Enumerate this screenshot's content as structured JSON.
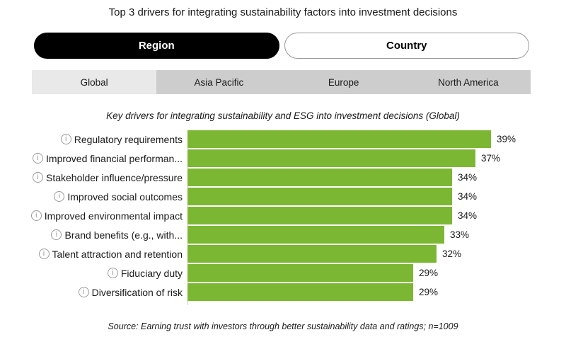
{
  "title": "Top 3 drivers for integrating sustainability factors into investment decisions",
  "toggle": {
    "region": "Region",
    "country": "Country"
  },
  "tabs": [
    {
      "label": "Global",
      "active": true
    },
    {
      "label": "Asia Pacific",
      "active": false
    },
    {
      "label": "Europe",
      "active": false
    },
    {
      "label": "North America",
      "active": false
    }
  ],
  "chart_data": {
    "type": "bar",
    "orientation": "horizontal",
    "title": "Key drivers for integrating sustainability and ESG into investment decisions (Global)",
    "categories": [
      "Regulatory requirements",
      "Improved financial performan...",
      "Stakeholder influence/pressure",
      "Improved social outcomes",
      "Improved environmental impact",
      "Brand benefits (e.g., with...",
      "Talent attraction and retention",
      "Fiduciary duty",
      "Diversification of risk"
    ],
    "values": [
      39,
      37,
      34,
      34,
      34,
      33,
      32,
      29,
      29
    ],
    "value_suffix": "%",
    "xlim": [
      0,
      39
    ],
    "grid": false,
    "legend": "none",
    "bar_color": "#7cb733",
    "info_icon": "circled-i"
  },
  "source": "Source: Earning trust with investors through better sustainability data and ratings; n=1009",
  "colors": {
    "bar_green": "#7cb733",
    "tab_active_bg": "#e9e9e9",
    "tab_inactive_bg": "#cdcdcd",
    "pill_active_bg": "#000000",
    "axis_line": "#cccccc"
  }
}
